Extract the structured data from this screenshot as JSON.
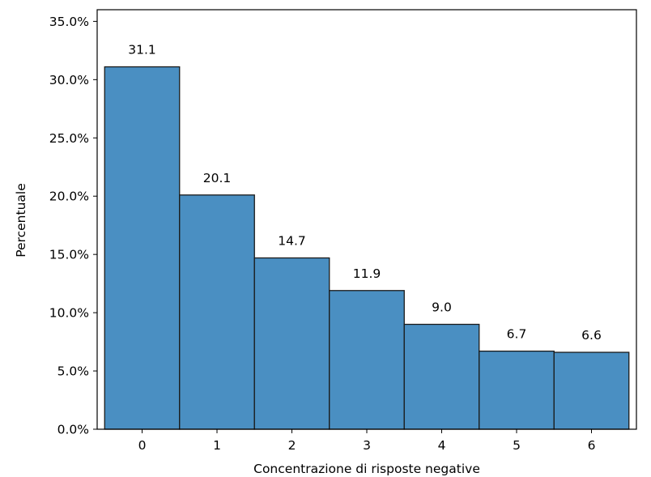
{
  "chart_data": {
    "type": "bar",
    "title": "",
    "xlabel": "Concentrazione di risposte negative",
    "ylabel": "Percentuale",
    "categories": [
      "0",
      "1",
      "2",
      "3",
      "4",
      "5",
      "6"
    ],
    "values": [
      31.1,
      20.1,
      14.7,
      11.9,
      9.0,
      6.7,
      6.6
    ],
    "data_labels": [
      "31.1",
      "20.1",
      "14.7",
      "11.9",
      "9.0",
      "6.7",
      "6.6"
    ],
    "ylim": [
      0,
      36
    ],
    "yticks": [
      0,
      5,
      10,
      15,
      20,
      25,
      30,
      35
    ],
    "ytick_labels": [
      "0.0%",
      "5.0%",
      "10.0%",
      "15.0%",
      "20.0%",
      "25.0%",
      "30.0%",
      "35.0%"
    ],
    "xlim": [
      -0.6,
      6.6
    ],
    "grid": false,
    "bar_color": "#4a8fc2",
    "edge_color": "#1a1a1a"
  }
}
